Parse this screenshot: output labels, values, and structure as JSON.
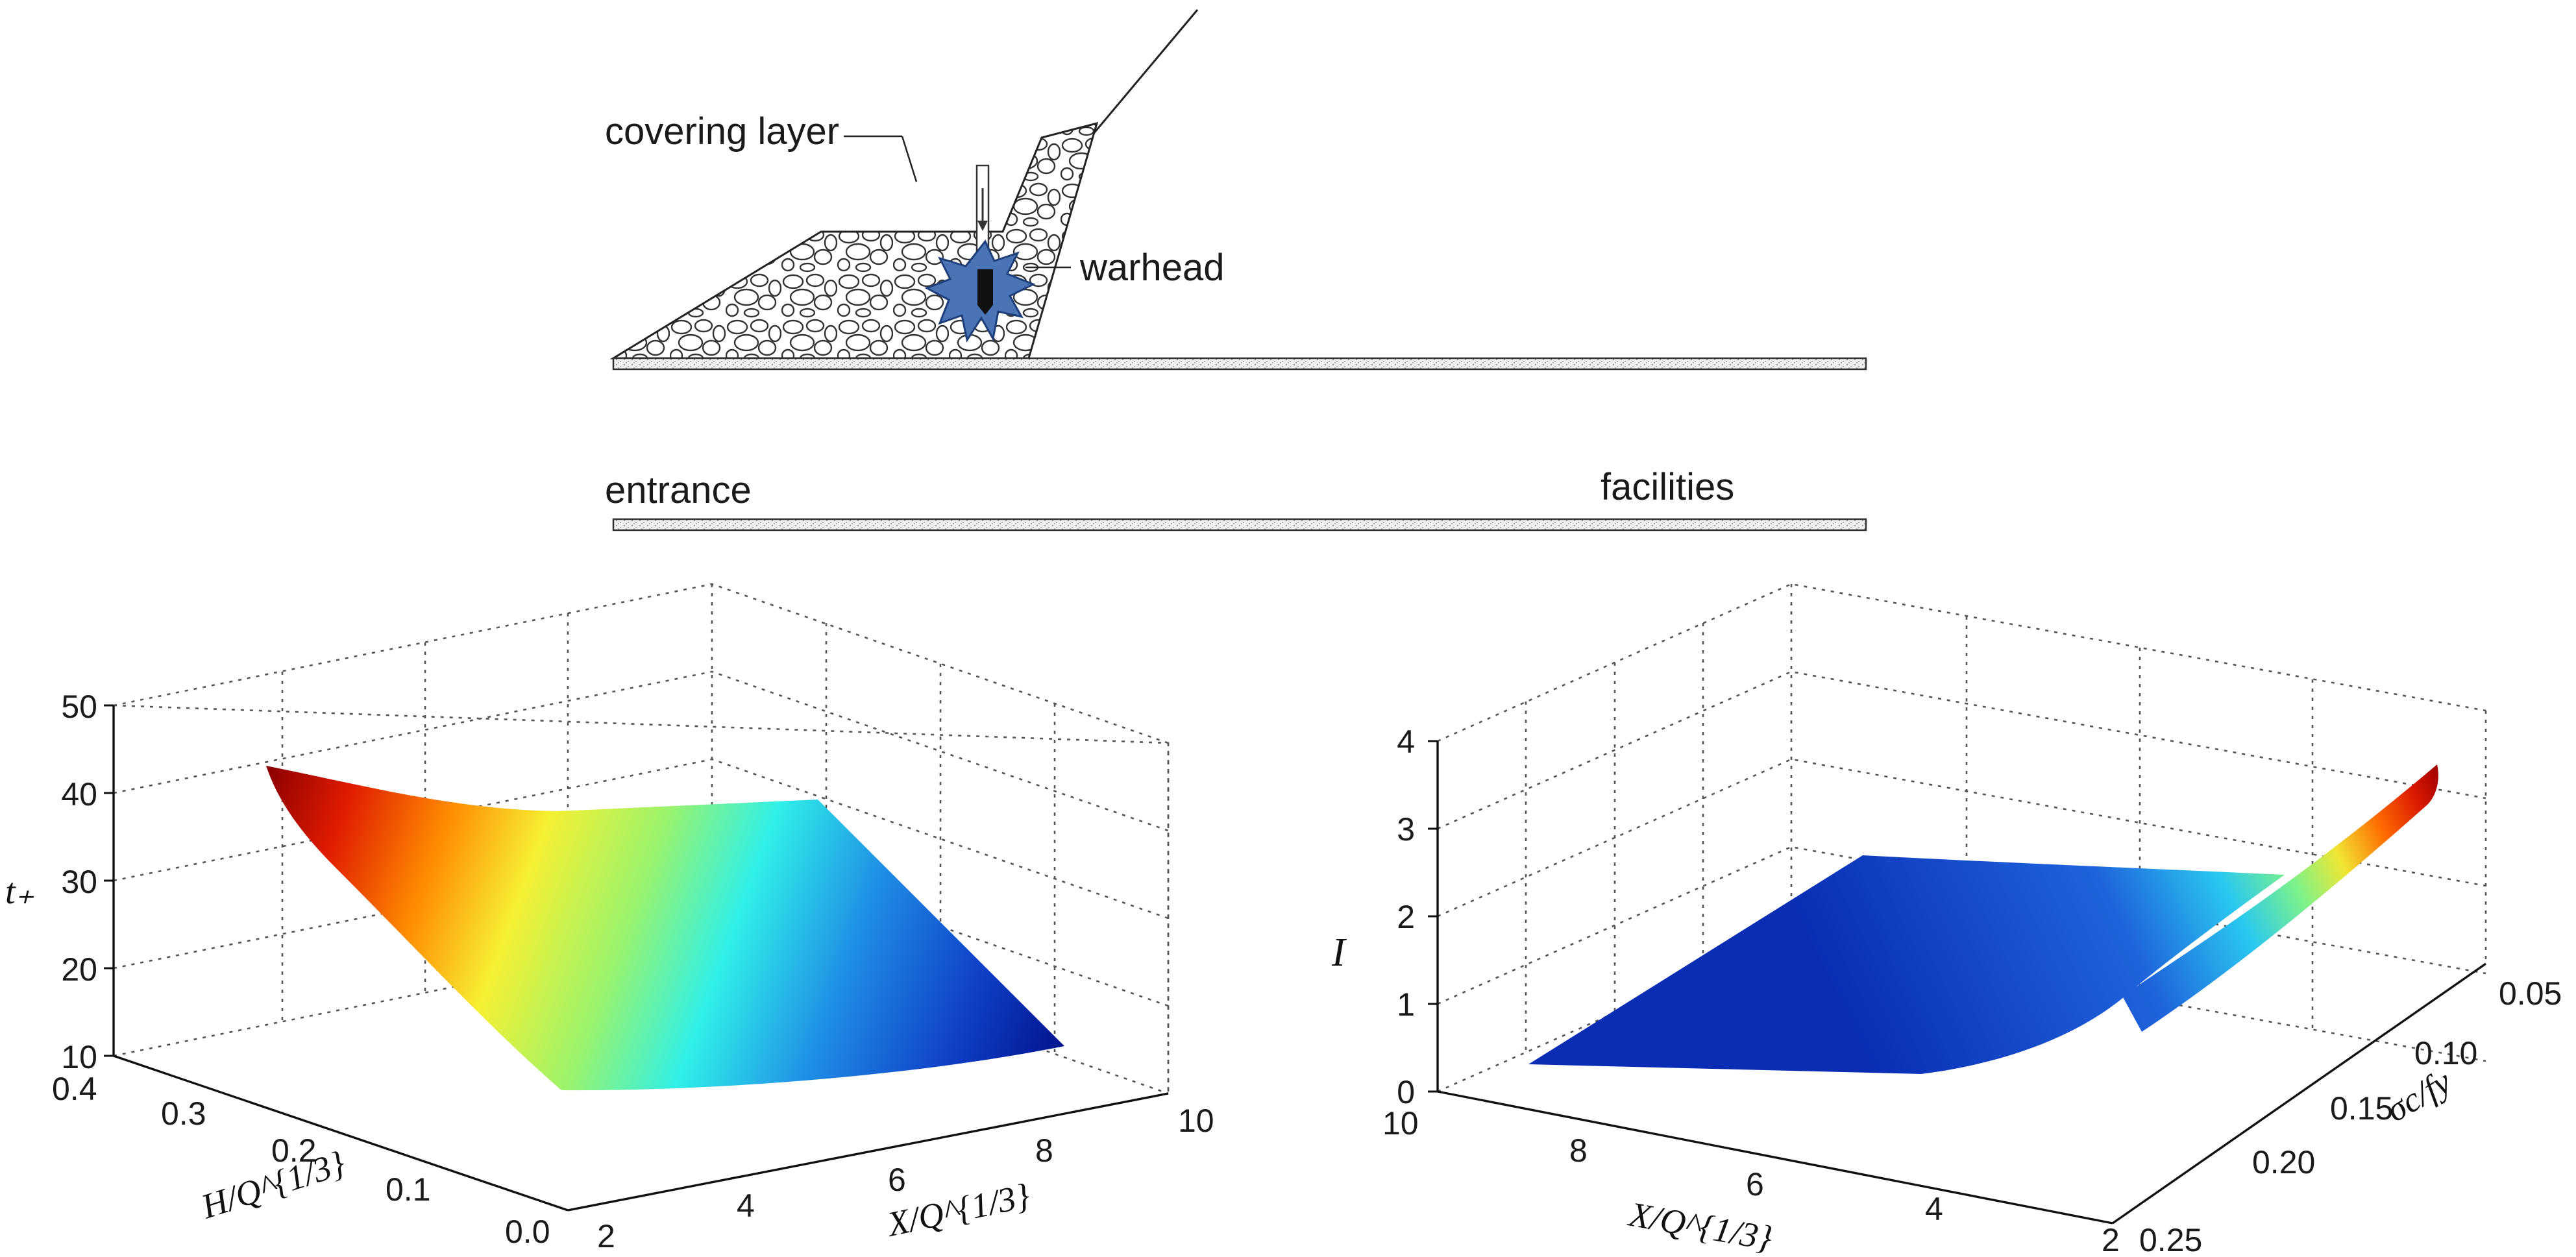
{
  "schematic": {
    "covering_label": "covering layer",
    "warhead_label": "warhead",
    "entrance_label": "entrance",
    "facilities_label": "facilities"
  },
  "left_plot": {
    "z_label": "t₊",
    "x_label": "X/Q^{1/3}",
    "y_label": "H/Q^{1/3}",
    "z_ticks": [
      "10",
      "20",
      "30",
      "40",
      "50"
    ],
    "x_ticks": [
      "2",
      "4",
      "6",
      "8",
      "10"
    ],
    "y_ticks": [
      "0.0",
      "0.1",
      "0.2",
      "0.3",
      "0.4"
    ]
  },
  "right_plot": {
    "z_label": "I",
    "x_label": "X/Q^{1/3}",
    "y_label": "σc/fy",
    "z_ticks": [
      "0",
      "1",
      "2",
      "3",
      "4"
    ],
    "x_ticks": [
      "10",
      "8",
      "6",
      "4",
      "2"
    ],
    "y_ticks": [
      "0.25",
      "0.20",
      "0.15",
      "0.10",
      "0.05"
    ]
  },
  "chart_data": [
    {
      "type": "surface",
      "title": "",
      "xlabel": "X/Q^{1/3}",
      "ylabel": "H/Q^{1/3}",
      "zlabel": "t+",
      "xlim": [
        2,
        10
      ],
      "ylim": [
        0.0,
        0.4
      ],
      "zlim": [
        10,
        50
      ],
      "corners": [
        {
          "x": 2,
          "y": 0.4,
          "z": 43
        },
        {
          "x": 10,
          "y": 0.4,
          "z": 32
        },
        {
          "x": 10,
          "y": 0.0,
          "z": 13
        },
        {
          "x": 2,
          "y": 0.0,
          "z": 15
        }
      ],
      "colormap": "jet"
    },
    {
      "type": "surface",
      "title": "",
      "xlabel": "X/Q^{1/3}",
      "ylabel": "σc/fy",
      "zlabel": "I",
      "xlim": [
        2,
        10
      ],
      "ylim": [
        0.05,
        0.25
      ],
      "zlim": [
        0,
        4
      ],
      "corners": [
        {
          "x": 10,
          "y": 0.25,
          "z": 0.3
        },
        {
          "x": 10,
          "y": 0.05,
          "z": 0.4
        },
        {
          "x": 2,
          "y": 0.05,
          "z": 3.6
        },
        {
          "x": 2,
          "y": 0.25,
          "z": 0.3
        }
      ],
      "colormap": "jet"
    }
  ],
  "colors": {
    "warhead_fill": "#4a74b6",
    "ground_fill": "#e6e6e6"
  }
}
